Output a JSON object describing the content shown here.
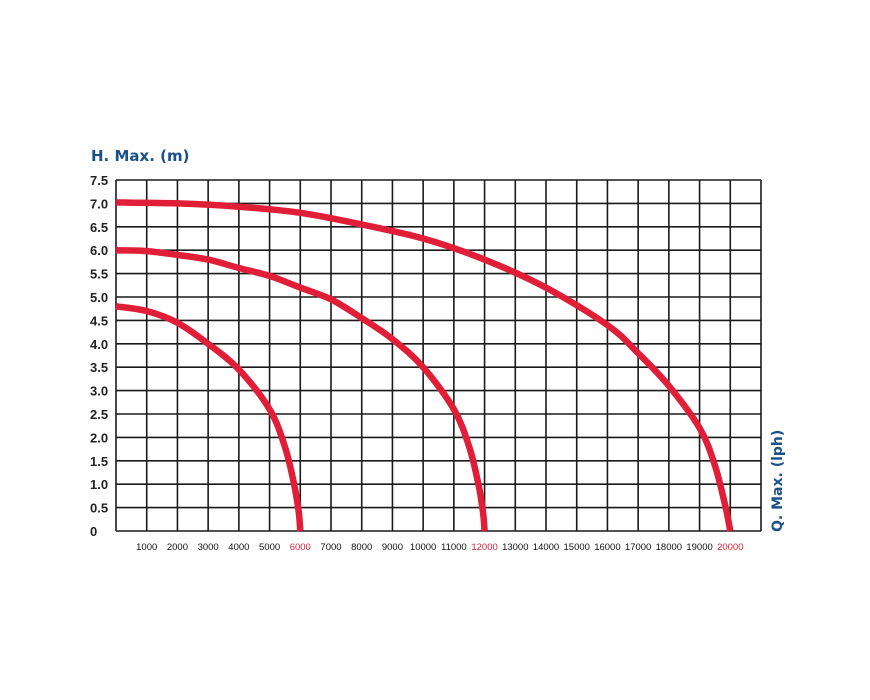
{
  "chart_data": {
    "type": "line",
    "ylabel": "H. Max. (m)",
    "xlabel": "Q. Max. (lph)",
    "xlim": [
      0,
      21000
    ],
    "ylim": [
      0,
      7.5
    ],
    "xticks": [
      "1000",
      "2000",
      "3000",
      "4000",
      "5000",
      "6000",
      "7000",
      "8000",
      "9000",
      "10000",
      "11000",
      "12000",
      "13000",
      "14000",
      "15000",
      "16000",
      "17000",
      "18000",
      "19000",
      "20000"
    ],
    "highlighted_xticks": [
      "6000",
      "12000",
      "20000"
    ],
    "yticks": [
      "0",
      "0.5",
      "1.0",
      "1.5",
      "2.0",
      "2.5",
      "3.0",
      "3.5",
      "4.0",
      "4.5",
      "5.0",
      "5.5",
      "6.0",
      "6.5",
      "7.0",
      "7.5"
    ],
    "grid": true,
    "colors": {
      "axis_text": "#1a5189",
      "curve": "#e01e37",
      "highlight_tick": "#e01e37",
      "grid": "#1a1a1a"
    },
    "series": [
      {
        "points": [
          [
            0,
            4.8
          ],
          [
            1000,
            4.7
          ],
          [
            2000,
            4.45
          ],
          [
            3000,
            4.0
          ],
          [
            4000,
            3.45
          ],
          [
            5000,
            2.6
          ],
          [
            5500,
            1.8
          ],
          [
            5800,
            1.0
          ],
          [
            5950,
            0.4
          ],
          [
            6000,
            0
          ]
        ]
      },
      {
        "points": [
          [
            0,
            6.0
          ],
          [
            1000,
            5.98
          ],
          [
            2000,
            5.9
          ],
          [
            3000,
            5.8
          ],
          [
            4000,
            5.62
          ],
          [
            5000,
            5.45
          ],
          [
            6000,
            5.2
          ],
          [
            7000,
            4.95
          ],
          [
            8000,
            4.55
          ],
          [
            9000,
            4.1
          ],
          [
            10000,
            3.5
          ],
          [
            11000,
            2.6
          ],
          [
            11500,
            1.8
          ],
          [
            11800,
            1.0
          ],
          [
            11950,
            0.4
          ],
          [
            12000,
            0
          ]
        ]
      },
      {
        "points": [
          [
            0,
            7.02
          ],
          [
            2000,
            7.0
          ],
          [
            4000,
            6.93
          ],
          [
            6000,
            6.8
          ],
          [
            8000,
            6.55
          ],
          [
            10000,
            6.25
          ],
          [
            12000,
            5.8
          ],
          [
            14000,
            5.2
          ],
          [
            16000,
            4.4
          ],
          [
            17000,
            3.8
          ],
          [
            18000,
            3.1
          ],
          [
            19000,
            2.2
          ],
          [
            19500,
            1.4
          ],
          [
            19850,
            0.5
          ],
          [
            20000,
            0
          ]
        ]
      }
    ]
  }
}
